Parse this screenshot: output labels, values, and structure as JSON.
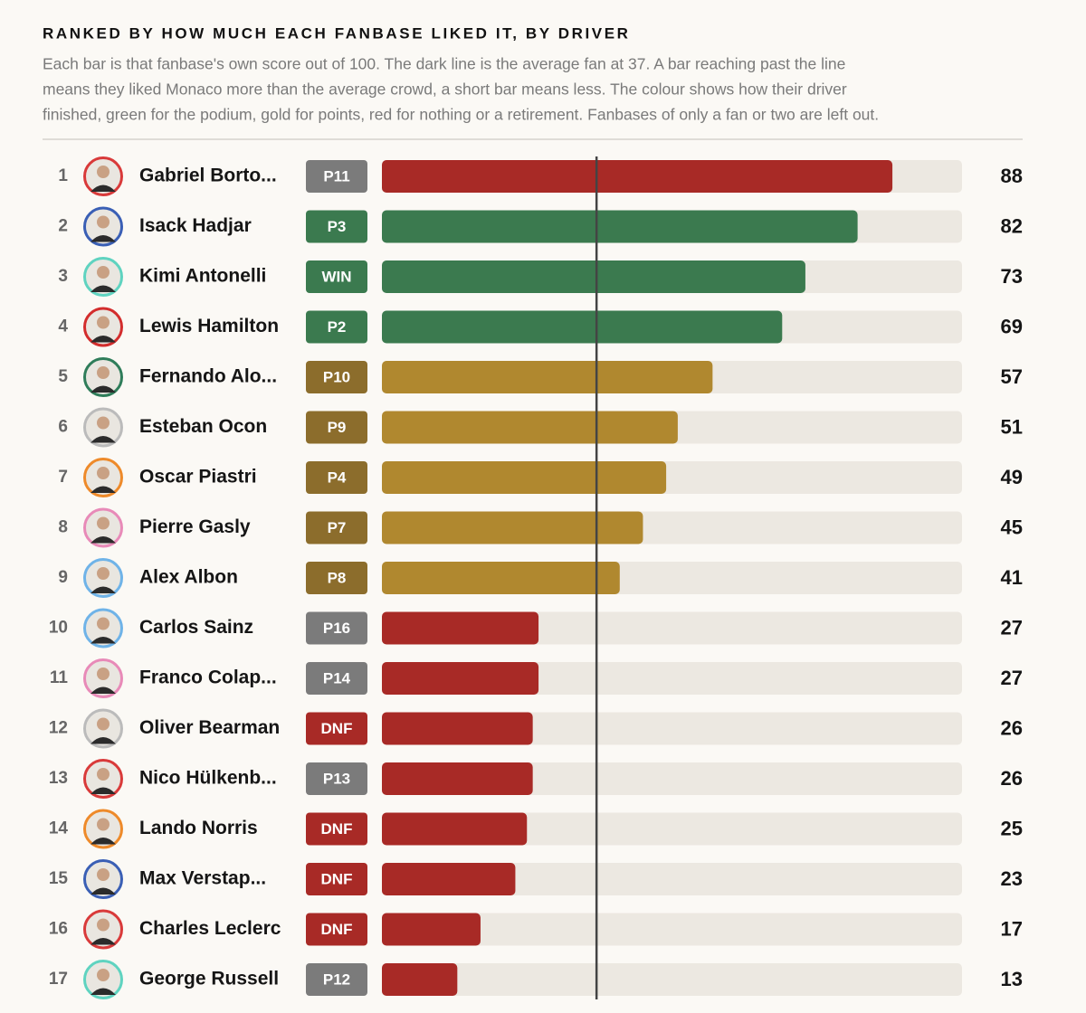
{
  "chart_data": {
    "type": "bar",
    "orientation": "horizontal",
    "title": "RANKED BY HOW MUCH EACH FANBASE LIKED IT, BY DRIVER",
    "subtitle": [
      "Each bar is that fanbase's own score out of 100. The dark line is the average fan at 37. A bar reaching past the line",
      "means they liked Monaco more than the average crowd, a short bar means less. The colour shows how their driver",
      "finished, green for the podium, gold for points, red for nothing or a retirement. Fanbases of only a fan or two are left out."
    ],
    "ranks": [
      1,
      2,
      3,
      4,
      5,
      6,
      7,
      8,
      9,
      10,
      11,
      12,
      13,
      14,
      15,
      16,
      17
    ],
    "categories": [
      "Gabriel Borto...",
      "Isack Hadjar",
      "Kimi Antonelli",
      "Lewis Hamilton",
      "Fernando Alo...",
      "Esteban Ocon",
      "Oscar Piastri",
      "Pierre Gasly",
      "Alex Albon",
      "Carlos Sainz",
      "Franco Colap...",
      "Oliver Bearman",
      "Nico Hülkenb...",
      "Lando Norris",
      "Max Verstap...",
      "Charles Leclerc",
      "George Russell"
    ],
    "finishes": [
      "P11",
      "P3",
      "WIN",
      "P2",
      "P10",
      "P9",
      "P4",
      "P7",
      "P8",
      "P16",
      "P14",
      "DNF",
      "P13",
      "DNF",
      "DNF",
      "DNF",
      "P12"
    ],
    "values": [
      88,
      82,
      73,
      69,
      57,
      51,
      49,
      45,
      41,
      27,
      27,
      26,
      26,
      25,
      23,
      17,
      13
    ],
    "colors": [
      "#a82a26",
      "#3b7a4f",
      "#3b7a4f",
      "#3b7a4f",
      "#b0882f",
      "#b0882f",
      "#b0882f",
      "#b0882f",
      "#b0882f",
      "#a82a26",
      "#a82a26",
      "#a82a26",
      "#a82a26",
      "#a82a26",
      "#a82a26",
      "#a82a26",
      "#a82a26"
    ],
    "badge_colors": [
      "#7b7b7b",
      "#3b7a4f",
      "#3b7a4f",
      "#3b7a4f",
      "#8c6d2c",
      "#8c6d2c",
      "#8c6d2c",
      "#8c6d2c",
      "#8c6d2c",
      "#7b7b7b",
      "#7b7b7b",
      "#a82a26",
      "#7b7b7b",
      "#a82a26",
      "#a82a26",
      "#a82a26",
      "#7b7b7b"
    ],
    "avatar_colors": [
      "#d93a3a",
      "#3a5fb5",
      "#5fd3c0",
      "#d32d2d",
      "#2f7d5a",
      "#bbbbbb",
      "#ee8a2a",
      "#e88ab8",
      "#6fb3e8",
      "#6fb3e8",
      "#e88ab8",
      "#bbbbbb",
      "#d93a3a",
      "#ee8a2a",
      "#3a5fb5",
      "#d93a3a",
      "#5fd3c0"
    ],
    "average": 37,
    "xlim": [
      0,
      100
    ],
    "track_color": "#ece8e1",
    "average_color": "#444444"
  }
}
